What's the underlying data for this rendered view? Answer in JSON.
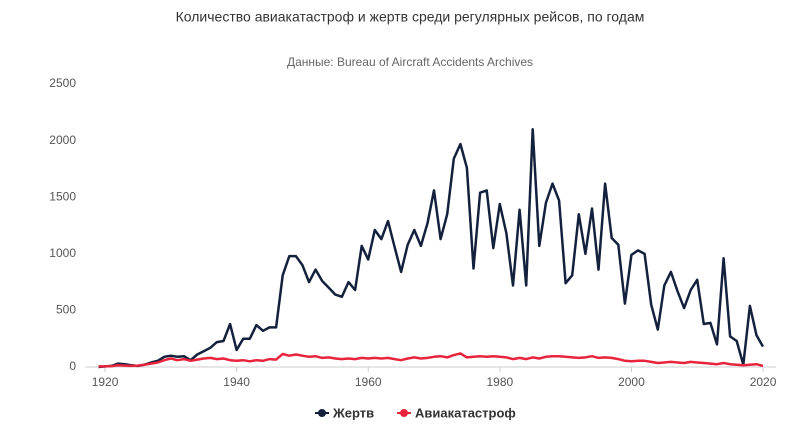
{
  "chart_data": {
    "type": "line",
    "title": "Количество авиакатастроф и жертв среди регулярных рейсов, по годам",
    "subtitle": "Данные: Bureau of Aircraft Accidents Archives",
    "x": [
      1919,
      1920,
      1921,
      1922,
      1923,
      1924,
      1925,
      1926,
      1927,
      1928,
      1929,
      1930,
      1931,
      1932,
      1933,
      1934,
      1935,
      1936,
      1937,
      1938,
      1939,
      1940,
      1941,
      1942,
      1943,
      1944,
      1945,
      1946,
      1947,
      1948,
      1949,
      1950,
      1951,
      1952,
      1953,
      1954,
      1955,
      1956,
      1957,
      1958,
      1959,
      1960,
      1961,
      1962,
      1963,
      1964,
      1965,
      1966,
      1967,
      1968,
      1969,
      1970,
      1971,
      1972,
      1973,
      1974,
      1975,
      1976,
      1977,
      1978,
      1979,
      1980,
      1981,
      1982,
      1983,
      1984,
      1985,
      1986,
      1987,
      1988,
      1989,
      1990,
      1991,
      1992,
      1993,
      1994,
      1995,
      1996,
      1997,
      1998,
      1999,
      2000,
      2001,
      2002,
      2003,
      2004,
      2005,
      2006,
      2007,
      2008,
      2009,
      2010,
      2011,
      2012,
      2013,
      2014,
      2015,
      2016,
      2017,
      2018,
      2019,
      2020
    ],
    "series": [
      {
        "name": "Жертв",
        "color": "#14213d",
        "values": [
          0,
          5,
          10,
          30,
          25,
          15,
          10,
          20,
          40,
          55,
          90,
          100,
          90,
          95,
          60,
          110,
          140,
          170,
          220,
          230,
          380,
          150,
          250,
          250,
          370,
          320,
          350,
          350,
          810,
          980,
          980,
          900,
          750,
          860,
          760,
          700,
          640,
          620,
          750,
          680,
          1070,
          950,
          1210,
          1130,
          1290,
          1060,
          840,
          1080,
          1210,
          1070,
          1270,
          1560,
          1130,
          1350,
          1840,
          1970,
          1760,
          870,
          1540,
          1560,
          1050,
          1440,
          1180,
          720,
          1390,
          720,
          2100,
          1070,
          1450,
          1620,
          1470,
          740,
          810,
          1350,
          1000,
          1400,
          860,
          1620,
          1140,
          1080,
          560,
          990,
          1030,
          1000,
          550,
          330,
          720,
          840,
          670,
          520,
          680,
          770,
          380,
          390,
          200,
          960,
          270,
          230,
          20,
          540,
          280,
          180
        ]
      },
      {
        "name": "Авиакатастроф",
        "color": "#e8243c",
        "values": [
          5,
          5,
          8,
          15,
          12,
          10,
          12,
          20,
          30,
          40,
          60,
          75,
          60,
          70,
          55,
          65,
          75,
          80,
          70,
          75,
          60,
          55,
          60,
          50,
          60,
          55,
          70,
          65,
          115,
          100,
          110,
          100,
          90,
          95,
          80,
          85,
          75,
          70,
          75,
          70,
          80,
          75,
          80,
          75,
          80,
          70,
          60,
          75,
          85,
          75,
          80,
          90,
          95,
          85,
          105,
          120,
          85,
          90,
          95,
          90,
          95,
          90,
          85,
          70,
          80,
          70,
          85,
          75,
          90,
          95,
          95,
          90,
          85,
          80,
          85,
          95,
          80,
          85,
          80,
          70,
          55,
          50,
          55,
          55,
          45,
          35,
          40,
          45,
          40,
          35,
          45,
          40,
          35,
          30,
          25,
          35,
          25,
          20,
          15,
          20,
          25,
          10
        ]
      }
    ],
    "xlim": [
      1917,
      2022
    ],
    "xticks": [
      1920,
      1940,
      1960,
      1980,
      2000,
      2020
    ],
    "ylim": [
      0,
      2500
    ],
    "yticks": [
      0,
      500,
      1000,
      1500,
      2000,
      2500
    ],
    "legend": "bottom"
  }
}
